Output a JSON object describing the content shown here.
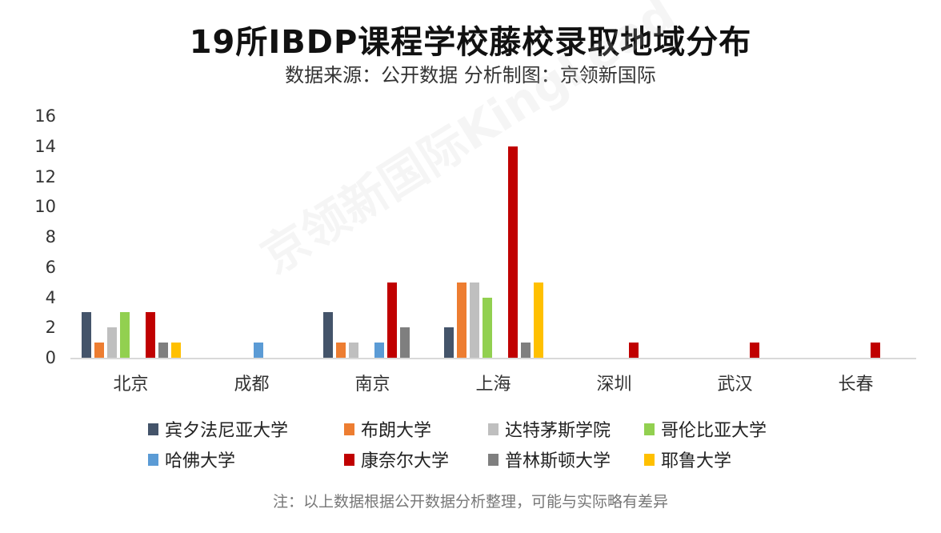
{
  "header": {
    "title": "19所IBDP课程学校藤校录取地域分布",
    "subtitle": "数据来源：公开数据  分析制图：京领新国际"
  },
  "watermark": "京领新国际KingLead",
  "footer": {
    "note": "注：以上数据根据公开数据分析整理，可能与实际略有差异"
  },
  "chart_data": {
    "type": "bar",
    "title": "19所IBDP课程学校藤校录取地域分布",
    "subtitle": "数据来源：公开数据  分析制图：京领新国际",
    "xlabel": "",
    "ylabel": "",
    "ylim": [
      0,
      16
    ],
    "yticks": [
      "0",
      "2",
      "4",
      "6",
      "8",
      "10",
      "12",
      "14",
      "16"
    ],
    "grid": false,
    "legend_position": "bottom",
    "categories": [
      "北京",
      "成都",
      "南京",
      "上海",
      "深圳",
      "武汉",
      "长春"
    ],
    "series": [
      {
        "name": "宾夕法尼亚大学",
        "color": "#44546a",
        "values": [
          3,
          0,
          3,
          2,
          0,
          0,
          0
        ]
      },
      {
        "name": "布朗大学",
        "color": "#ed7d31",
        "values": [
          1,
          0,
          1,
          5,
          0,
          0,
          0
        ]
      },
      {
        "name": "达特茅斯学院",
        "color": "#bfbfbf",
        "values": [
          2,
          0,
          1,
          5,
          0,
          0,
          0
        ]
      },
      {
        "name": "哥伦比亚大学",
        "color": "#92d050",
        "values": [
          3,
          0,
          0,
          4,
          0,
          0,
          0
        ]
      },
      {
        "name": "哈佛大学",
        "color": "#5b9bd5",
        "values": [
          0,
          1,
          1,
          0,
          0,
          0,
          0
        ]
      },
      {
        "name": "康奈尔大学",
        "color": "#c00000",
        "values": [
          3,
          0,
          5,
          14,
          1,
          1,
          1
        ]
      },
      {
        "name": "普林斯顿大学",
        "color": "#7f7f7f",
        "values": [
          1,
          0,
          2,
          1,
          0,
          0,
          0
        ]
      },
      {
        "name": "耶鲁大学",
        "color": "#ffc000",
        "values": [
          1,
          0,
          0,
          5,
          0,
          0,
          0
        ]
      }
    ],
    "note": "注：以上数据根据公开数据分析整理，可能与实际略有差异"
  }
}
